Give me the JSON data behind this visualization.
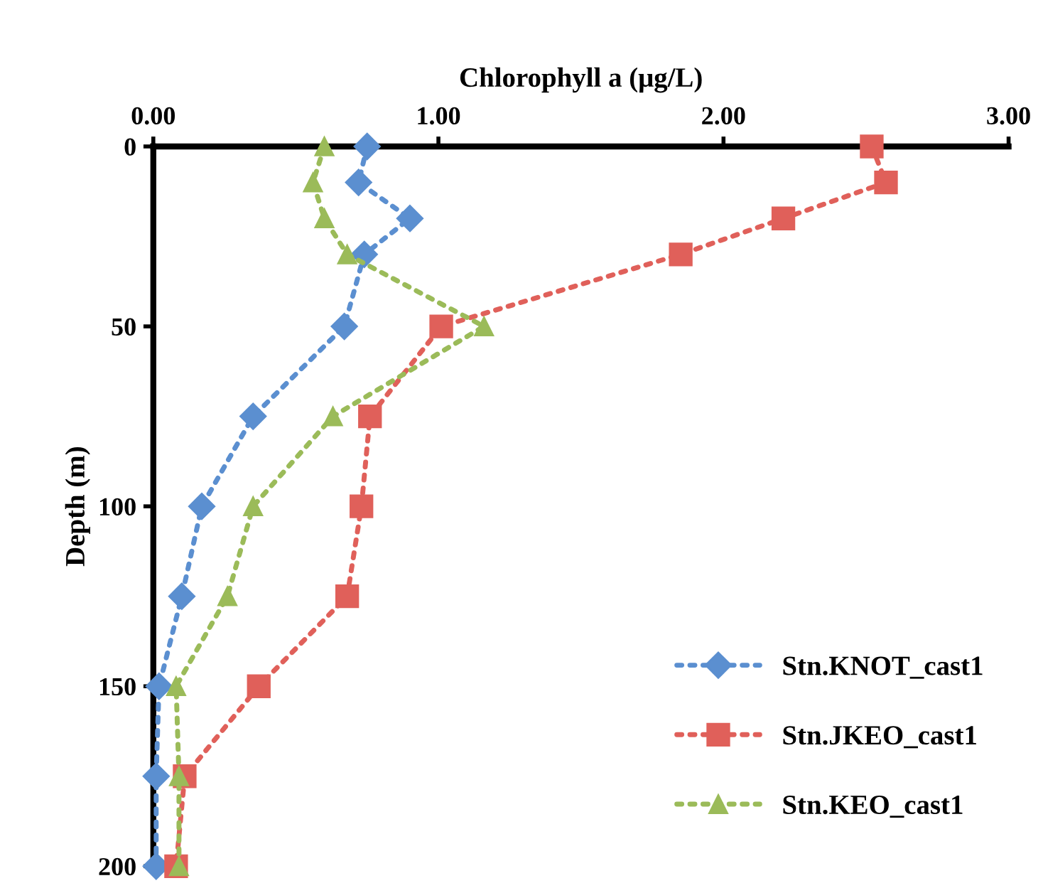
{
  "chart_data": {
    "type": "line",
    "xlabel": "Chlorophyll a (μg/L)",
    "ylabel": "Depth (m)",
    "xlim": [
      0,
      3
    ],
    "xticks": [
      {
        "value": 0,
        "label": "0.00"
      },
      {
        "value": 1,
        "label": "1.00"
      },
      {
        "value": 2,
        "label": "2.00"
      },
      {
        "value": 3,
        "label": "3.00"
      }
    ],
    "ylim": [
      200,
      0
    ],
    "yticks": [
      0,
      50,
      100,
      150,
      200
    ],
    "grid": false,
    "legend": "bottom right",
    "line_style": "dotted",
    "series": [
      {
        "name": "Stn.KNOT_cast1",
        "color": "#5b8fd0",
        "marker": "diamond",
        "x": [
          0.75,
          0.72,
          0.9,
          0.74,
          0.67,
          0.35,
          0.17,
          0.1,
          0.02,
          0.01,
          0.01
        ],
        "values": [
          0,
          10,
          20,
          30,
          50,
          75,
          100,
          125,
          150,
          175,
          200
        ]
      },
      {
        "name": "Stn.JKEO_cast1",
        "color": "#e0605a",
        "marker": "square",
        "x": [
          2.52,
          2.57,
          2.21,
          1.85,
          1.01,
          0.76,
          0.73,
          0.68,
          0.37,
          0.11,
          0.08
        ],
        "values": [
          0,
          10,
          20,
          30,
          50,
          75,
          100,
          125,
          150,
          175,
          200
        ]
      },
      {
        "name": "Stn.KEO_cast1",
        "color": "#9bbb59",
        "marker": "triangle",
        "x": [
          0.6,
          0.56,
          0.6,
          0.68,
          1.16,
          0.63,
          0.35,
          0.26,
          0.08,
          0.09,
          0.09
        ],
        "values": [
          0,
          10,
          20,
          30,
          50,
          75,
          100,
          125,
          150,
          175,
          200
        ]
      }
    ]
  }
}
